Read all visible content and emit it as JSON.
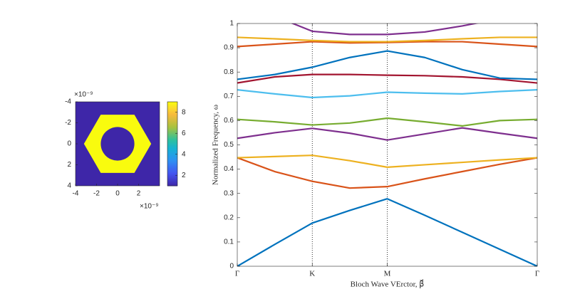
{
  "chart_data": [
    {
      "type": "image",
      "xlim": [
        -4,
        4
      ],
      "ylim": [
        -4,
        4
      ],
      "y_reversed": true,
      "xticks": [
        -4,
        -2,
        0,
        2
      ],
      "yticks": [
        -4,
        -2,
        0,
        2,
        4
      ],
      "x_exponent": "×10⁻⁹",
      "y_exponent": "×10⁻⁹",
      "colormap": "parula",
      "clim": [
        1,
        9
      ],
      "cticks": [
        2,
        4,
        6,
        8
      ],
      "background": 1,
      "regions": [
        {
          "shape": "hexagon",
          "center": [
            0,
            0
          ],
          "radius": 3.2,
          "value": 9
        },
        {
          "shape": "circle",
          "center": [
            0,
            0
          ],
          "radius": 1.6,
          "value": 1
        }
      ]
    },
    {
      "type": "line",
      "xlabel": "Bloch Wave VErctor, β⃗",
      "ylabel": "Normalized Frequency, ω",
      "x": [
        0,
        0.5,
        1,
        1.5,
        2,
        2.5,
        3,
        3.5,
        4
      ],
      "xlim": [
        0,
        4
      ],
      "xticks": [
        {
          "value": 0,
          "label": "Γ"
        },
        {
          "value": 1,
          "label": "K"
        },
        {
          "value": 2,
          "label": "M"
        },
        {
          "value": 4,
          "label": "Γ"
        }
      ],
      "ylim": [
        0,
        1
      ],
      "yticks": [
        0,
        0.1,
        0.2,
        0.3,
        0.4,
        0.5,
        0.6,
        0.7,
        0.8,
        0.9,
        1
      ],
      "vlines": [
        1,
        2
      ],
      "series": [
        {
          "color": "#0072BD",
          "values": [
            0,
            0.09,
            0.178,
            0.23,
            0.278,
            0.21,
            0.14,
            0.07,
            0
          ]
        },
        {
          "color": "#D95319",
          "values": [
            0.447,
            0.39,
            0.35,
            0.322,
            0.328,
            0.36,
            0.39,
            0.42,
            0.447
          ]
        },
        {
          "color": "#EDB120",
          "values": [
            0.447,
            0.452,
            0.457,
            0.435,
            0.408,
            0.418,
            0.428,
            0.438,
            0.447
          ]
        },
        {
          "color": "#7E2F8E",
          "values": [
            0.527,
            0.55,
            0.568,
            0.548,
            0.52,
            0.545,
            0.57,
            0.548,
            0.527
          ]
        },
        {
          "color": "#77AC30",
          "values": [
            0.605,
            0.595,
            0.582,
            0.59,
            0.61,
            0.595,
            0.578,
            0.6,
            0.605
          ]
        },
        {
          "color": "#4DBEEE",
          "values": [
            0.727,
            0.71,
            0.695,
            0.702,
            0.717,
            0.713,
            0.71,
            0.72,
            0.727
          ]
        },
        {
          "color": "#A2142F",
          "values": [
            0.755,
            0.78,
            0.79,
            0.79,
            0.787,
            0.785,
            0.78,
            0.77,
            0.755
          ]
        },
        {
          "color": "#0072BD",
          "values": [
            0.77,
            0.79,
            0.82,
            0.86,
            0.887,
            0.86,
            0.81,
            0.775,
            0.77
          ]
        },
        {
          "color": "#D95319",
          "values": [
            0.905,
            0.915,
            0.925,
            0.92,
            0.922,
            0.925,
            0.925,
            0.915,
            0.905
          ]
        },
        {
          "color": "#EDB120",
          "values": [
            0.943,
            0.937,
            0.93,
            0.925,
            0.925,
            0.93,
            0.937,
            0.943,
            0.943
          ]
        },
        {
          "color": "#7E2F8E",
          "values": [
            1.1,
            1.03,
            0.968,
            0.955,
            0.955,
            0.965,
            0.99,
            1.02,
            1.1
          ]
        }
      ]
    }
  ]
}
